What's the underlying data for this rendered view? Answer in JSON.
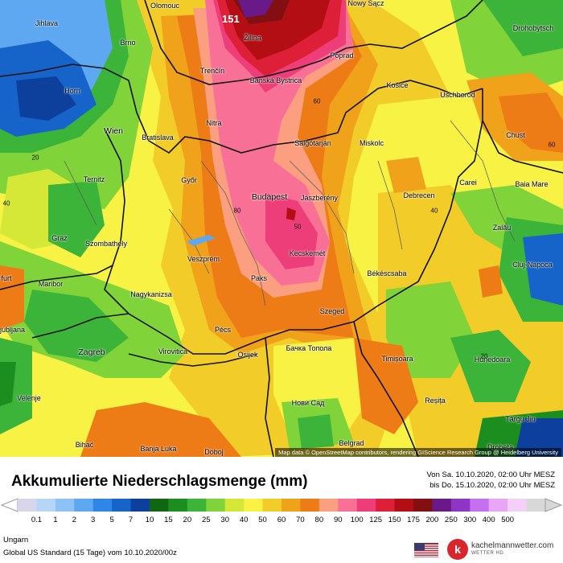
{
  "map": {
    "max_value": "151",
    "attribution": "Map data © OpenStreetMap contributors, rendering GIScience Research Group @ Heidelberg University",
    "cities": [
      {
        "name": "Olomouc",
        "big": false
      },
      {
        "name": "Nowy Sącz",
        "big": false
      },
      {
        "name": "Drohobytsch",
        "big": false
      },
      {
        "name": "Jihlava",
        "big": false
      },
      {
        "name": "Brno",
        "big": false
      },
      {
        "name": "Žilina",
        "big": false
      },
      {
        "name": "Poprad",
        "big": false
      },
      {
        "name": "Trenčín",
        "big": false
      },
      {
        "name": "Banská Bystrica",
        "big": false
      },
      {
        "name": "Košice",
        "big": false
      },
      {
        "name": "Uschhorod",
        "big": false
      },
      {
        "name": "Horn",
        "big": false
      },
      {
        "name": "Wien",
        "big": true
      },
      {
        "name": "Bratislava",
        "big": false
      },
      {
        "name": "Nitra",
        "big": false
      },
      {
        "name": "Salgótarján",
        "big": false
      },
      {
        "name": "Miskolc",
        "big": false
      },
      {
        "name": "Chust",
        "big": false
      },
      {
        "name": "Ternitz",
        "big": false
      },
      {
        "name": "Győr",
        "big": false
      },
      {
        "name": "Budapest",
        "big": true
      },
      {
        "name": "Jászberény",
        "big": false
      },
      {
        "name": "Debrecen",
        "big": false
      },
      {
        "name": "Carei",
        "big": false
      },
      {
        "name": "Baia Mare",
        "big": false
      },
      {
        "name": "Szombathely",
        "big": false
      },
      {
        "name": "Graz",
        "big": false
      },
      {
        "name": "Veszprém",
        "big": false
      },
      {
        "name": "Zalău",
        "big": false
      },
      {
        "name": "Kecskemét",
        "big": false
      },
      {
        "name": "Cluj-Napoca",
        "big": false
      },
      {
        "name": "Békéscsaba",
        "big": false
      },
      {
        "name": "Paks",
        "big": false
      },
      {
        "name": "Maribor",
        "big": false
      },
      {
        "name": "Nagykanizsa",
        "big": false
      },
      {
        "name": "Szeged",
        "big": false
      },
      {
        "name": "Ljubljana",
        "big": false
      },
      {
        "name": "Pécs",
        "big": false
      },
      {
        "name": "Zagreb",
        "big": true
      },
      {
        "name": "Virovitica",
        "big": false
      },
      {
        "name": "Бачка Топола",
        "big": false
      },
      {
        "name": "Timișoara",
        "big": false
      },
      {
        "name": "Hunedoara",
        "big": false
      },
      {
        "name": "Osijek",
        "big": false
      },
      {
        "name": "Нови Сад",
        "big": false
      },
      {
        "name": "Reșița",
        "big": false
      },
      {
        "name": "Târgu Jiu",
        "big": false
      },
      {
        "name": "Bihać",
        "big": false
      },
      {
        "name": "Banja Luka",
        "big": false
      },
      {
        "name": "Doboj",
        "big": false
      },
      {
        "name": "Belgrad",
        "big": false
      },
      {
        "name": "Drobeta",
        "big": false
      },
      {
        "name": "Velenje",
        "big": false
      },
      {
        "name": "furt",
        "big": false
      }
    ],
    "contour_labels": [
      "20",
      "60",
      "80",
      "40",
      "60",
      "20",
      "40",
      "50"
    ]
  },
  "legend": {
    "title": "Akkumulierte Niederschlagsmenge (mm)",
    "from": "Von Sa. 10.10.2020, 02:00 Uhr MESZ",
    "to": "bis Do. 15.10.2020, 02:00 Uhr MESZ",
    "ticks": [
      "0.1",
      "1",
      "2",
      "3",
      "5",
      "7",
      "10",
      "15",
      "20",
      "25",
      "30",
      "40",
      "50",
      "60",
      "70",
      "80",
      "90",
      "100",
      "125",
      "150",
      "175",
      "200",
      "250",
      "300",
      "400",
      "500"
    ],
    "colors": [
      "#d8d6ec",
      "#b6d6f8",
      "#8cc2f6",
      "#5ea8f2",
      "#2e86e6",
      "#1663c9",
      "#0d3f9c",
      "#116611",
      "#1c8e1f",
      "#3cb43a",
      "#80d338",
      "#d5e838",
      "#f7f244",
      "#f2cc28",
      "#f0a21a",
      "#ed7b16",
      "#fb9f80",
      "#f87096",
      "#ee3e7a",
      "#dd1f37",
      "#b30e14",
      "#821012",
      "#6a1a88",
      "#8f34c4",
      "#c570ee",
      "#e9a6f5",
      "#f4d0f8",
      "#d8d8d8"
    ]
  },
  "footer": {
    "region": "Ungarn",
    "model": "Global US Standard (15 Tage) vom 10.10.2020/00z",
    "brand": "kachelmannwetter.com",
    "brand_sub": "WETTER HD"
  }
}
